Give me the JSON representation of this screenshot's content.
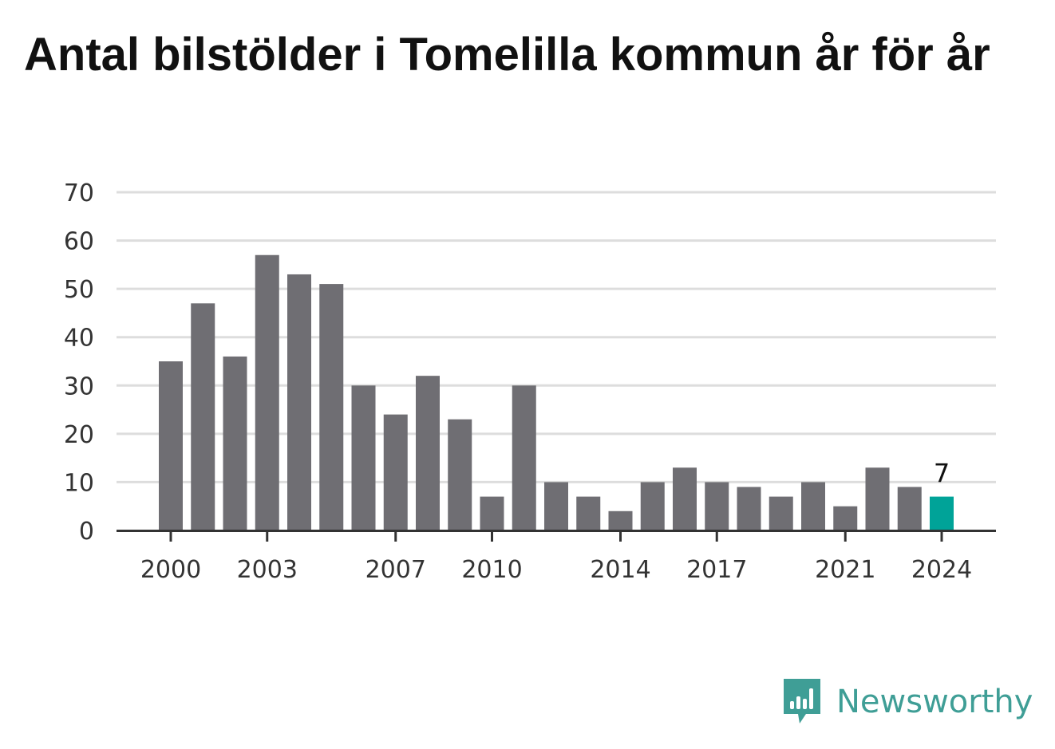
{
  "title": "Antal bilstölder i Tomelilla kommun år för år",
  "brand": {
    "name": "Newsworthy"
  },
  "colors": {
    "bar": "#6f6e73",
    "highlight": "#00a398",
    "grid": "#dddddd",
    "axis": "#333333",
    "brand": "#3f9e96"
  },
  "chart_data": {
    "type": "bar",
    "title": "Antal bilstölder i Tomelilla kommun år för år",
    "xlabel": "",
    "ylabel": "",
    "categories": [
      2000,
      2001,
      2002,
      2003,
      2004,
      2005,
      2006,
      2007,
      2008,
      2009,
      2010,
      2011,
      2012,
      2013,
      2014,
      2015,
      2016,
      2017,
      2018,
      2019,
      2020,
      2021,
      2022,
      2023,
      2024
    ],
    "values": [
      35,
      47,
      36,
      57,
      53,
      51,
      30,
      24,
      32,
      23,
      7,
      30,
      10,
      7,
      4,
      10,
      13,
      10,
      9,
      7,
      10,
      5,
      13,
      9,
      7
    ],
    "x_tick_labels": [
      "2000",
      "2003",
      "2007",
      "2010",
      "2014",
      "2017",
      "2021",
      "2024"
    ],
    "y_ticks": [
      "0",
      "10",
      "20",
      "30",
      "40",
      "50",
      "60",
      "70"
    ],
    "ylim": [
      0,
      70
    ],
    "grid": true,
    "highlight_category": 2024,
    "data_labels": [
      {
        "category": 2024,
        "text": "7"
      }
    ]
  }
}
